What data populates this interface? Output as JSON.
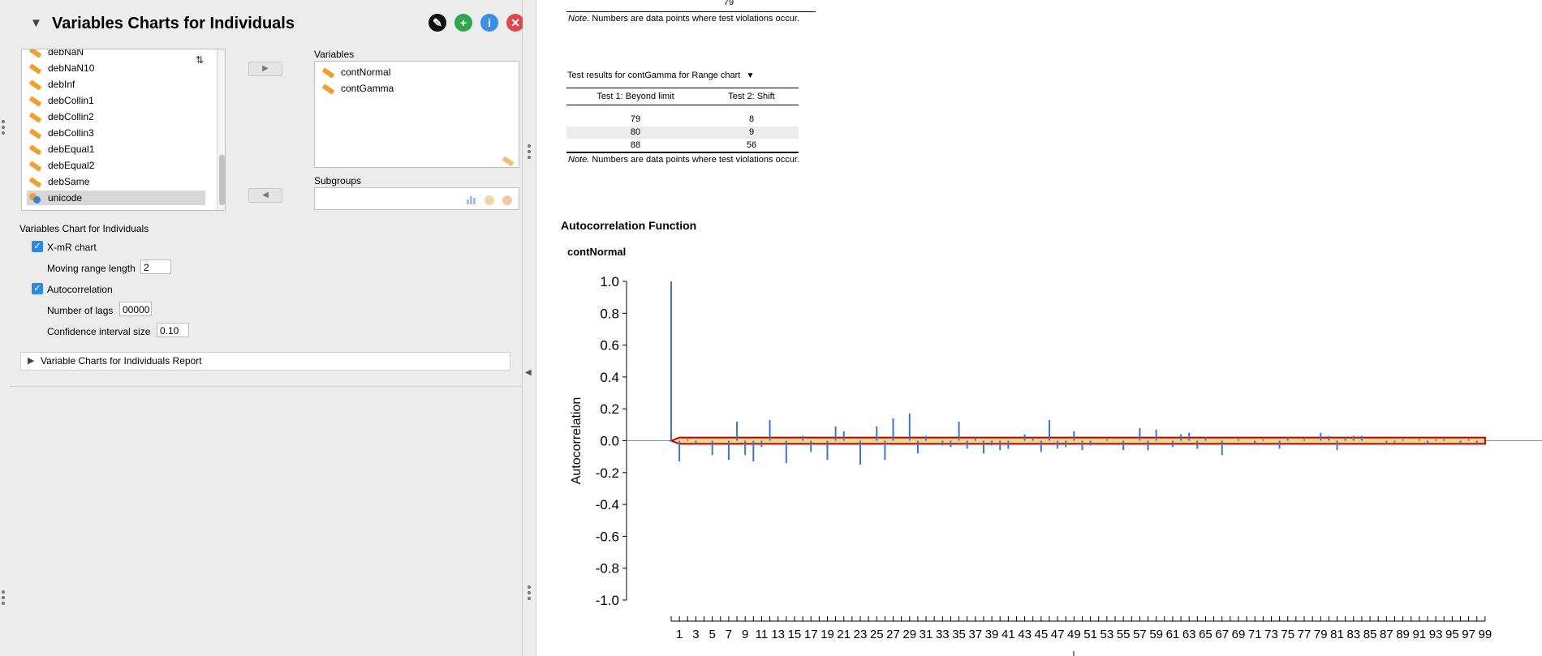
{
  "panel": {
    "title": "Variables Charts for Individuals",
    "source_items": [
      {
        "label": "debNaN",
        "icon": "scale-icon"
      },
      {
        "label": "debNaN10",
        "icon": "scale-icon"
      },
      {
        "label": "debInf",
        "icon": "scale-icon"
      },
      {
        "label": "debCollin1",
        "icon": "scale-icon"
      },
      {
        "label": "debCollin2",
        "icon": "scale-icon"
      },
      {
        "label": "debCollin3",
        "icon": "scale-icon"
      },
      {
        "label": "debEqual1",
        "icon": "scale-icon"
      },
      {
        "label": "debEqual2",
        "icon": "scale-icon"
      },
      {
        "label": "debSame",
        "icon": "scale-icon"
      },
      {
        "label": "unicode",
        "icon": "nominal-icon"
      }
    ],
    "sort_icon": "sort-az-icon",
    "variables_label": "Variables",
    "variables": [
      {
        "label": "contNormal",
        "icon": "scale-icon"
      },
      {
        "label": "contGamma",
        "icon": "scale-icon"
      }
    ],
    "subgroups_label": "Subgroups",
    "section_label": "Variables Chart for Individuals",
    "xmr_label": "X-mR chart",
    "xmr_checked": true,
    "moving_range_label": "Moving range length",
    "moving_range_value": "2",
    "autocorr_label": "Autocorrelation",
    "autocorr_checked": true,
    "lags_label": "Number of lags",
    "lags_value": "00000",
    "ci_label": "Confidence interval size",
    "ci_value": "0.10",
    "report_section": "Variable Charts for Individuals Report"
  },
  "output": {
    "top_cut_value": "79",
    "note1": "Numbers are data points where test violations occur.",
    "note_prefix": "Note.",
    "table_title": "Test results for contGamma for Range chart",
    "table_headers": [
      "Test 1: Beyond limit",
      "Test 2: Shift"
    ],
    "table_rows": [
      [
        "79",
        "8"
      ],
      [
        "80",
        "9"
      ],
      [
        "88",
        "56"
      ]
    ],
    "note2": "Numbers are data points where test violations occur.",
    "acf_section_title": "Autocorrelation Function",
    "acf_plot_title": "contNormal"
  },
  "chart_data": {
    "type": "bar",
    "title": "contNormal",
    "xlabel": "",
    "ylabel": "Autocorrelation",
    "ylim": [
      -1.0,
      1.0
    ],
    "yticks": [
      "1.0",
      "0.8",
      "0.6",
      "0.4",
      "0.2",
      "0.0",
      "-0.2",
      "-0.4",
      "-0.6",
      "-0.8",
      "-1.0"
    ],
    "x": [
      0,
      1,
      2,
      3,
      4,
      5,
      6,
      7,
      8,
      9,
      10,
      11,
      12,
      13,
      14,
      15,
      16,
      17,
      18,
      19,
      20,
      21,
      22,
      23,
      24,
      25,
      26,
      27,
      28,
      29,
      30,
      31,
      32,
      33,
      34,
      35,
      36,
      37,
      38,
      39,
      40,
      41,
      42,
      43,
      44,
      45,
      46,
      47,
      48,
      49,
      50,
      51,
      52,
      53,
      54,
      55,
      56,
      57,
      58,
      59,
      60,
      61,
      62,
      63,
      64,
      65,
      66,
      67,
      68,
      69,
      70,
      71,
      72,
      73,
      74,
      75,
      76,
      77,
      78,
      79,
      80,
      81,
      82,
      83,
      84,
      85,
      86,
      87,
      88,
      89,
      90,
      91,
      92,
      93,
      94,
      95,
      96,
      97,
      98,
      99
    ],
    "xticks": [
      "1",
      "3",
      "5",
      "7",
      "9",
      "11",
      "13",
      "15",
      "17",
      "19",
      "21",
      "23",
      "25",
      "27",
      "29",
      "31",
      "33",
      "35",
      "37",
      "39",
      "41",
      "43",
      "45",
      "47",
      "49",
      "51",
      "53",
      "55",
      "57",
      "59",
      "61",
      "63",
      "65",
      "67",
      "69",
      "71",
      "73",
      "75",
      "77",
      "79",
      "81",
      "83",
      "85",
      "87",
      "89",
      "91",
      "93",
      "95",
      "97",
      "99"
    ],
    "values": [
      1.0,
      -0.13,
      0.01,
      -0.02,
      0.0,
      -0.09,
      0.0,
      -0.12,
      0.12,
      -0.09,
      -0.13,
      -0.04,
      0.13,
      0.0,
      -0.14,
      0.0,
      0.03,
      -0.07,
      0.0,
      -0.12,
      0.09,
      0.06,
      0.0,
      -0.15,
      0.0,
      0.09,
      -0.12,
      0.14,
      0.0,
      0.17,
      -0.08,
      0.03,
      0.0,
      -0.03,
      -0.04,
      0.12,
      -0.05,
      0.02,
      -0.08,
      -0.03,
      -0.06,
      -0.05,
      0.0,
      0.04,
      0.02,
      -0.07,
      0.13,
      -0.05,
      -0.04,
      0.06,
      -0.06,
      -0.03,
      0.0,
      0.01,
      0.0,
      -0.06,
      0.0,
      0.08,
      -0.06,
      0.07,
      0.0,
      -0.04,
      0.04,
      0.05,
      -0.05,
      0.02,
      0.0,
      -0.09,
      0.0,
      0.01,
      0.0,
      -0.02,
      0.01,
      0.0,
      -0.05,
      0.02,
      0.0,
      0.01,
      0.0,
      0.05,
      0.03,
      -0.06,
      0.02,
      0.03,
      0.03,
      0.0,
      0.0,
      -0.02,
      -0.01,
      0.01,
      0.0,
      0.01,
      -0.02,
      0.01,
      0.01,
      0.0,
      -0.02,
      0.01,
      -0.02,
      0.0
    ],
    "confidence_band": 0.02,
    "zero_line": 0.0,
    "colors": {
      "bars": "#4472c4",
      "band": "#c00000",
      "zero": "#33cc33"
    }
  }
}
